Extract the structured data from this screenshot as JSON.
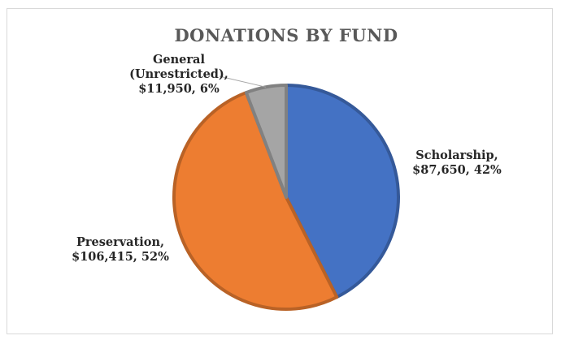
{
  "chart_data": {
    "type": "pie",
    "title": "DONATIONS BY FUND",
    "categories": [
      "Scholarship",
      "Preservation",
      "General (Unrestricted)"
    ],
    "values": [
      87650,
      106415,
      11950
    ],
    "percentages": [
      42,
      52,
      6
    ],
    "colors": [
      "#4472c4",
      "#ed7d31",
      "#a5a5a5"
    ],
    "labels": [
      {
        "lines": [
          "Scholarship,",
          "$87,650, 42%"
        ]
      },
      {
        "lines": [
          "Preservation,",
          "$106,415, 52%"
        ]
      },
      {
        "lines": [
          "General",
          "(Unrestricted),",
          "$11,950, 6%"
        ]
      }
    ],
    "legend": "none",
    "grid": false
  }
}
